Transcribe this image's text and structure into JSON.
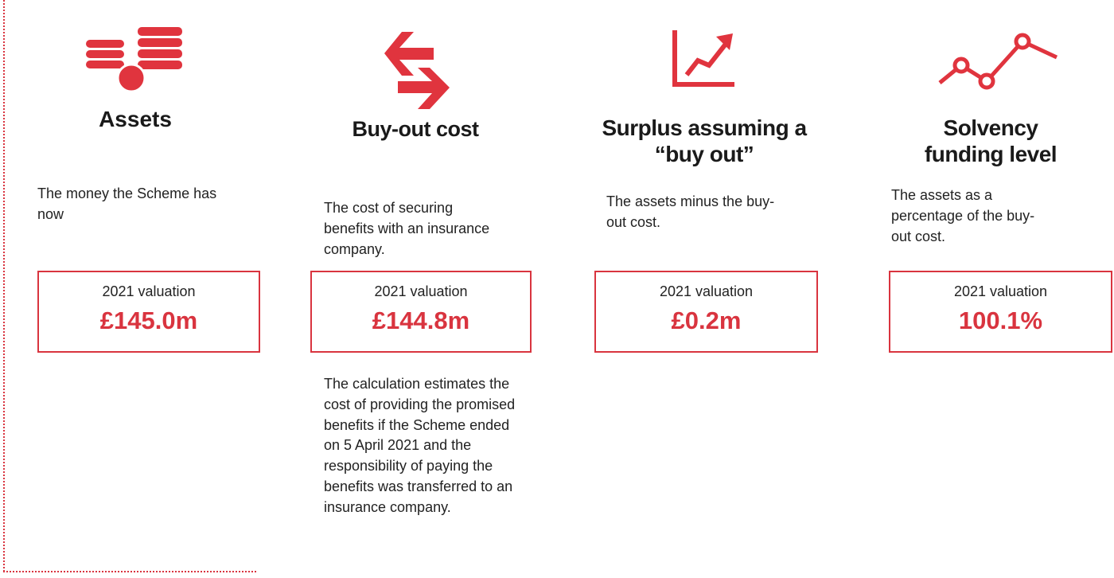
{
  "columns": [
    {
      "title": "Assets",
      "description": "The money the Scheme has now",
      "box_label": "2021 valuation",
      "value": "£145.0m"
    },
    {
      "title": "Buy-out cost",
      "description": "The cost of securing benefits with an insurance company.",
      "box_label": "2021 valuation",
      "value": "£144.8m",
      "note": "The calculation estimates the cost of providing the promised benefits if the Scheme ended on 5 April 2021 and the responsibility of paying the benefits was transferred to an insurance company."
    },
    {
      "title": "Surplus assuming a “buy out”",
      "description": "The assets minus the buy-out cost.",
      "box_label": "2021 valuation",
      "value": "£0.2m"
    },
    {
      "title": "Solvency funding level",
      "description": "The assets as a percentage of the buy-out cost.",
      "box_label": "2021 valuation",
      "value": "100.1%"
    }
  ]
}
